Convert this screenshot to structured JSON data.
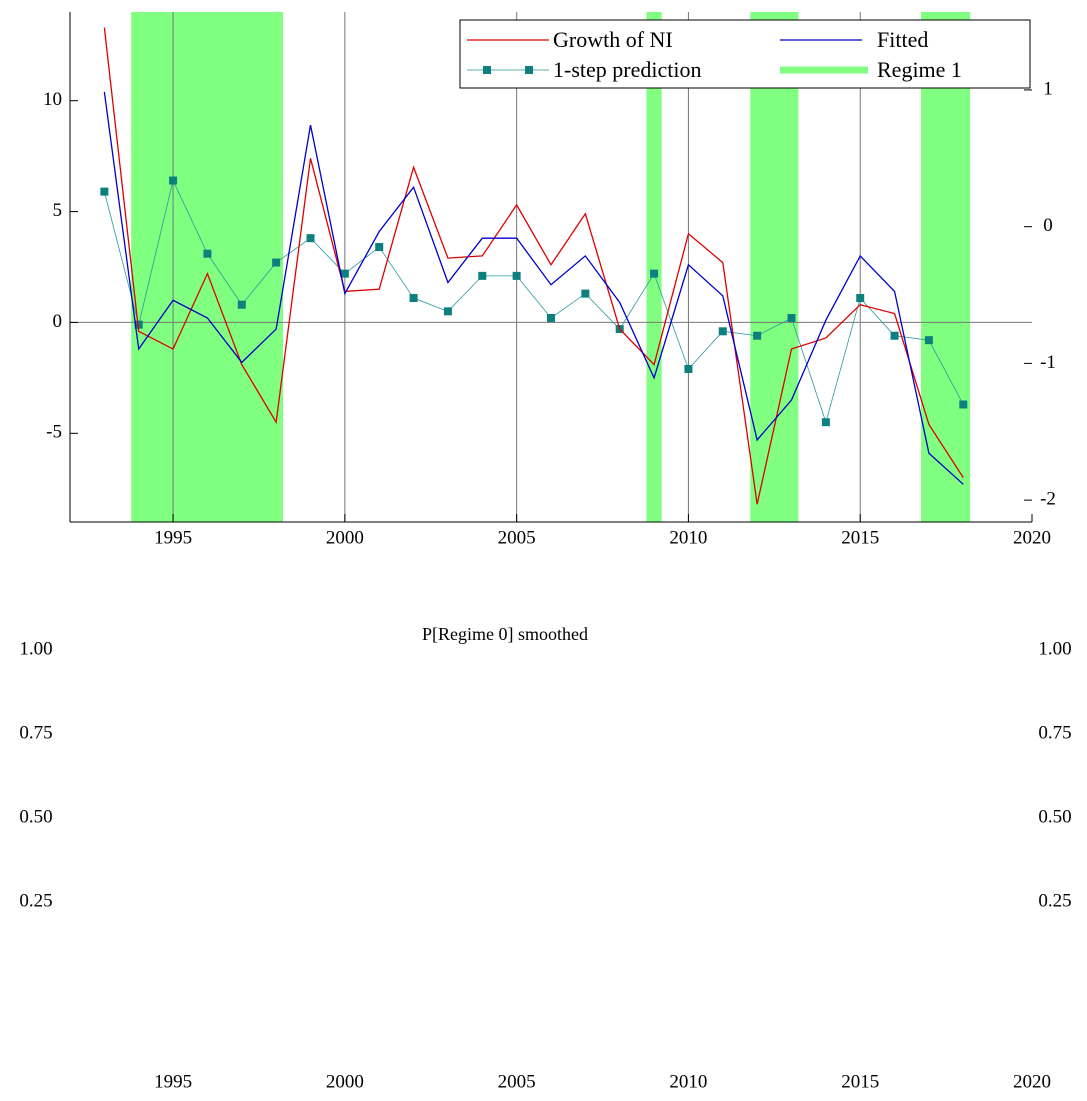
{
  "chart_data": [
    {
      "type": "line",
      "x": [
        1993,
        1994,
        1995,
        1996,
        1997,
        1998,
        1999,
        2000,
        2001,
        2002,
        2003,
        2004,
        2005,
        2006,
        2007,
        2008,
        2009,
        2010,
        2011,
        2012,
        2013,
        2014,
        2015,
        2016,
        2017,
        2018
      ],
      "series": [
        {
          "name": "Growth of NI",
          "color": "#e00000",
          "values": [
            13.3,
            -0.4,
            -1.2,
            2.2,
            -1.9,
            -4.5,
            7.4,
            1.4,
            1.5,
            7.0,
            2.9,
            3.0,
            5.3,
            2.6,
            4.9,
            -0.3,
            -1.9,
            4.0,
            2.7,
            -8.2,
            -1.2,
            -0.7,
            0.8,
            0.4,
            -4.6,
            -7.0
          ]
        },
        {
          "name": "Fitted",
          "color": "#0000cc",
          "values": [
            10.4,
            -1.2,
            1.0,
            0.2,
            -1.8,
            -0.3,
            8.9,
            1.3,
            4.1,
            6.1,
            1.8,
            3.8,
            3.8,
            1.7,
            3.0,
            0.9,
            -2.5,
            2.6,
            1.2,
            -5.3,
            -3.5,
            0.1,
            3.0,
            1.4,
            -5.9,
            -7.3
          ]
        },
        {
          "name": "1-step prediction",
          "color": "#2a9a9a",
          "marker_color": "#0e7f7f",
          "values": [
            5.9,
            -0.1,
            6.4,
            3.1,
            0.8,
            2.7,
            3.8,
            2.2,
            3.4,
            1.1,
            0.5,
            2.1,
            2.1,
            0.2,
            1.3,
            -0.3,
            2.2,
            -2.1,
            -0.4,
            -0.6,
            0.2,
            -4.5,
            1.1,
            -0.6,
            -0.8,
            -3.7
          ]
        }
      ],
      "regime": {
        "name": "Regime 1",
        "color": "#80ff80",
        "spans": [
          [
            1993.78,
            1998.2
          ],
          [
            2008.78,
            2009.22
          ],
          [
            2011.8,
            2013.2
          ],
          [
            2016.77,
            2018.2
          ]
        ]
      },
      "xlim": [
        1992,
        2020
      ],
      "xticks": [
        1995,
        2000,
        2005,
        2010,
        2015,
        2020
      ],
      "ylim": [
        -9,
        14
      ],
      "yticks": [
        -5,
        0,
        5,
        10
      ],
      "y2lim": [
        -2.16,
        1.57
      ],
      "y2ticks": [
        -2,
        -1,
        0,
        1
      ],
      "hline": 0,
      "grid": true
    },
    {
      "type": "line",
      "title": "P[Regime 0] smoothed",
      "xlim": [
        1992,
        2020
      ],
      "xticks": [
        1995,
        2000,
        2005,
        2010,
        2015,
        2020
      ],
      "ylim": [
        0,
        1
      ],
      "yticks": [
        {
          "value": 1,
          "label": "1.00"
        },
        0.75,
        {
          "value": 0.5,
          "label": "0.50"
        },
        0.25
      ],
      "y2lim": [
        0,
        1
      ],
      "y2ticks": [
        {
          "value": 1,
          "label": "1.00"
        },
        0.75,
        {
          "value": 0.5,
          "label": "0.50"
        },
        0.25
      ]
    }
  ]
}
